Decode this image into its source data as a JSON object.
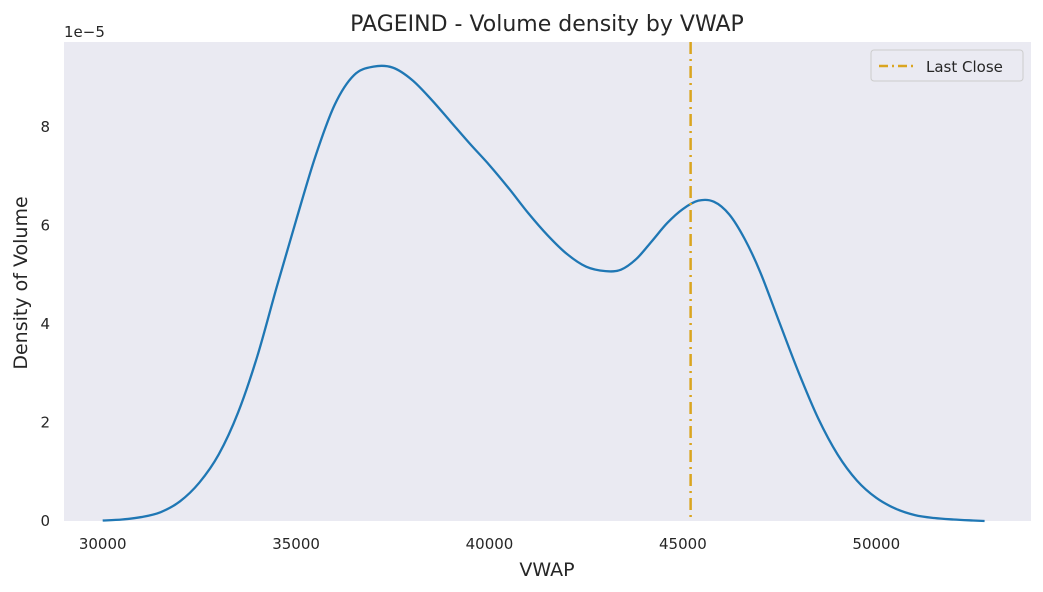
{
  "chart_data": {
    "type": "line",
    "title": "PAGEIND - Volume density by VWAP",
    "xlabel": "VWAP",
    "ylabel": "Density of Volume",
    "y_offset_text": "1e−5",
    "xlim": [
      29000,
      54000
    ],
    "ylim": [
      0,
      9.72
    ],
    "y_scale_exponent": -5,
    "x_ticks": [
      30000,
      35000,
      40000,
      45000,
      50000
    ],
    "x_tick_labels": [
      "30000",
      "35000",
      "40000",
      "45000",
      "50000"
    ],
    "y_ticks": [
      0,
      2,
      4,
      6,
      8
    ],
    "y_tick_labels": [
      "0",
      "2",
      "4",
      "6",
      "8"
    ],
    "grid": false,
    "legend_position": "top-right",
    "colors": {
      "background": "#eaeaf2",
      "density": "#1f77b4",
      "last_close": "#daa520"
    },
    "series": [
      {
        "name": "",
        "color": "#1f77b4",
        "x": [
          30000,
          30500,
          31000,
          31500,
          32000,
          32500,
          33000,
          33500,
          34000,
          34500,
          35000,
          35500,
          36000,
          36500,
          37000,
          37500,
          38000,
          38500,
          39000,
          39500,
          40000,
          40500,
          41000,
          41500,
          42000,
          42500,
          43000,
          43400,
          43800,
          44200,
          44600,
          45000,
          45400,
          45800,
          46200,
          46600,
          47000,
          47500,
          48000,
          48500,
          49000,
          49500,
          50000,
          50500,
          51000,
          51500,
          52000,
          52500,
          52800
        ],
        "y": [
          0.01,
          0.03,
          0.08,
          0.18,
          0.4,
          0.78,
          1.35,
          2.2,
          3.35,
          4.75,
          6.1,
          7.4,
          8.45,
          9.05,
          9.22,
          9.2,
          8.95,
          8.55,
          8.1,
          7.65,
          7.22,
          6.75,
          6.25,
          5.8,
          5.42,
          5.16,
          5.07,
          5.1,
          5.32,
          5.68,
          6.05,
          6.33,
          6.5,
          6.48,
          6.22,
          5.72,
          5.05,
          4.02,
          3.0,
          2.08,
          1.35,
          0.82,
          0.47,
          0.25,
          0.12,
          0.06,
          0.03,
          0.01,
          0.0
        ]
      }
    ],
    "vlines": [
      {
        "name": "Last Close",
        "x": 45200,
        "color": "#daa520",
        "style": "dashdot"
      }
    ]
  }
}
